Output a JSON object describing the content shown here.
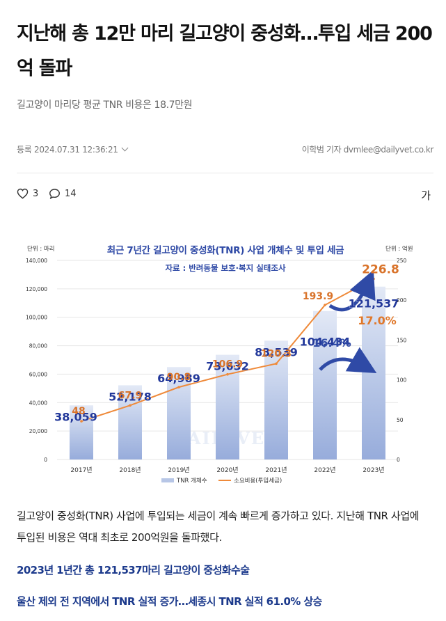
{
  "article": {
    "title": "지난해 총 12만 마리 길고양이 중성화…투입 세금 200억 돌파",
    "subtitle": "길고양이 마리당 평균 TNR 비용은 18.7만원",
    "date_label": "등록 2024.07.31 12:36:21",
    "author": "이학범 기자 dvmlee@dailyvet.co.kr",
    "like_count": "3",
    "comment_count": "14",
    "font_button": "가",
    "body": "길고양이 중성화(TNR) 사업에 투입되는 세금이 계속 빠르게 증가하고 있다. 지난해 TNR 사업에 투입된 비용은 역대 최초로 200억원을 돌파했다.",
    "subhead1": "2023년 1년간 총 121,537마리 길고양이 중성화수술",
    "subhead2": "울산 제외 전 지역에서 TNR 실적 증가…세종시 TNR 실적 61.0% 상승"
  },
  "icons": {
    "like": "heart-icon",
    "comment": "comment-icon",
    "date_toggle": "chevron-down-icon"
  },
  "chart_data": {
    "type": "bar",
    "title": "최근 7년간 길고양이 중성화(TNR) 사업 개체수 및 투입 세금",
    "subtitle": "자료 : 반려동물 보호·복지 실태조사",
    "watermark": "DAILYVET",
    "categories": [
      "2017년",
      "2018년",
      "2019년",
      "2020년",
      "2021년",
      "2022년",
      "2023년"
    ],
    "left_unit": "단위 : 마리",
    "right_unit": "단위 : 억원",
    "ylim_left": [
      0,
      140000
    ],
    "ylim_right": [
      0,
      250
    ],
    "left_ticks": [
      "0",
      "20,000",
      "40,000",
      "60,000",
      "80,000",
      "100,000",
      "120,000",
      "140,000"
    ],
    "right_ticks": [
      "0",
      "50",
      "100",
      "150",
      "200",
      "250"
    ],
    "grid": true,
    "legend_position": "bottom",
    "series": [
      {
        "name": "TNR 개체수",
        "type": "bar",
        "axis": "left",
        "values": [
          38059,
          52178,
          64989,
          73632,
          83539,
          104434,
          121537
        ],
        "labels": [
          "38,059",
          "52,178",
          "64,989",
          "73,632",
          "83,539",
          "104,434",
          "121,537"
        ],
        "color": "#b7c6e6"
      },
      {
        "name": "소요비용(투입세금)",
        "type": "line",
        "axis": "right",
        "values": [
          48,
          67.9,
          90.8,
          106.9,
          120.3,
          193.9,
          226.8
        ],
        "labels": [
          "48",
          "67.9",
          "90.8",
          "106.9",
          "120.3",
          "193.9",
          "226.8"
        ],
        "color": "#ef8a3a"
      }
    ],
    "annotations": [
      {
        "text": "16.4%",
        "color": "#2f4aa6",
        "refers_to": "TNR 개체수"
      },
      {
        "text": "17.0%",
        "color": "#e0782b",
        "refers_to": "소요비용(투입세금)"
      }
    ],
    "colors": {
      "bar_label": "#22389a",
      "line_label": "#d9732a",
      "title": "#2f4aa6",
      "arrow": "#2f4aa6"
    }
  }
}
